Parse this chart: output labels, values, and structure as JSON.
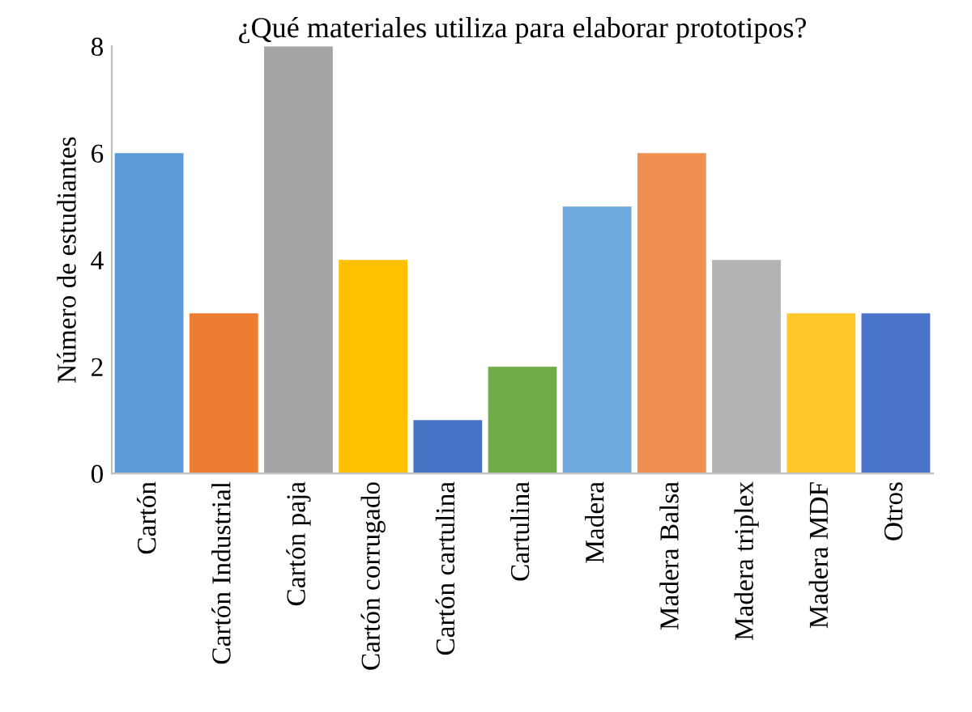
{
  "chart_data": {
    "type": "bar",
    "title": "¿Qué materiales utiliza para elaborar prototipos?",
    "ylabel": "Número de estudiantes",
    "categories": [
      "Cartón",
      "Cartón Industrial",
      "Cartón paja",
      "Cartón corrugado",
      "Cartón cartulina",
      "Cartulina",
      "Madera",
      "Madera Balsa",
      "Madera triplex",
      "Madera MDF",
      "Otros"
    ],
    "values": [
      6,
      3,
      8,
      4,
      1,
      2,
      5,
      6,
      4,
      3,
      3
    ],
    "colors": [
      "#5b9bd5",
      "#ed7d31",
      "#a5a5a5",
      "#ffc000",
      "#4472c4",
      "#70ad47",
      "#6fa8dc",
      "#ef8f50",
      "#b3b3b3",
      "#ffc82a",
      "#4a74c9"
    ],
    "ylim": [
      0,
      8
    ],
    "yticks": [
      0,
      2,
      4,
      6,
      8
    ],
    "grid": false
  }
}
